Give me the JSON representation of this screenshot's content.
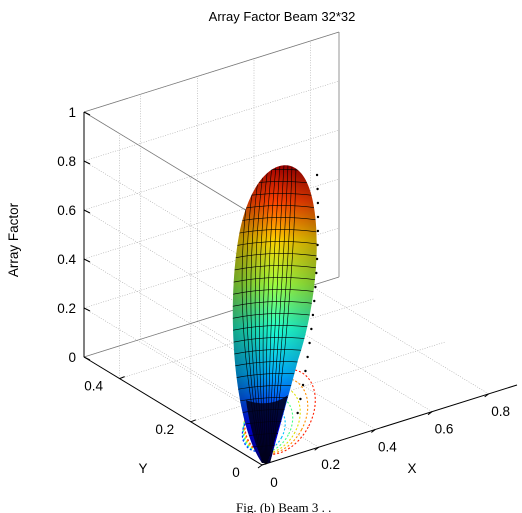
{
  "chart_data": {
    "type": "surface3d",
    "title": "Array Factor Beam 32*32",
    "xlabel": "X",
    "ylabel": "Y",
    "zlabel": "Array Factor",
    "xlim": [
      0,
      0.9
    ],
    "ylim": [
      0,
      0.5
    ],
    "zlim": [
      0,
      1
    ],
    "xticks": [
      "0",
      "0.2",
      "0.4",
      "0.6",
      "0.8"
    ],
    "yticks": [
      "0",
      "0.2",
      "0.4"
    ],
    "zticks": [
      "0",
      "0.2",
      "0.4",
      "0.6",
      "0.8",
      "1"
    ],
    "grid": true,
    "colormap": "jet",
    "beam_peak": 0.82,
    "beam_main_lobe_peak_xy": [
      0.42,
      0.45
    ],
    "caption_partial": "Fig. (b) Beam 3 . ."
  }
}
